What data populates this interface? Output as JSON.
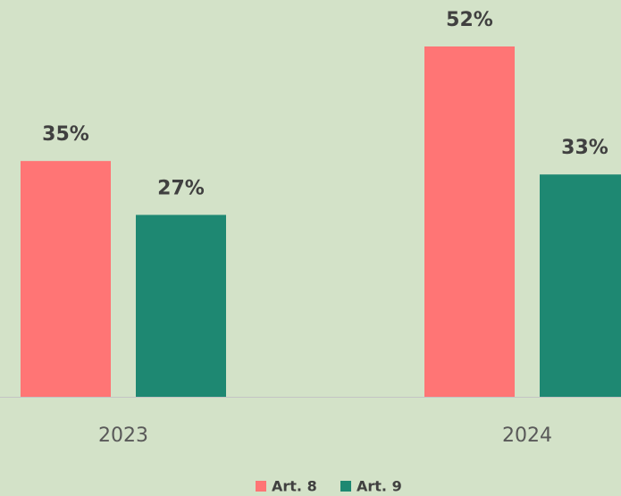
{
  "chart_data": {
    "type": "bar",
    "categories": [
      "2023",
      "2024"
    ],
    "series": [
      {
        "name": "Art. 8",
        "color": "#ff7575",
        "values": [
          35,
          52
        ],
        "value_labels": [
          "35%",
          "52%"
        ]
      },
      {
        "name": "Art. 9",
        "color": "#1e8872",
        "values": [
          27,
          33
        ],
        "value_labels": [
          "27%",
          "33%"
        ]
      }
    ],
    "legend": "bottom"
  }
}
